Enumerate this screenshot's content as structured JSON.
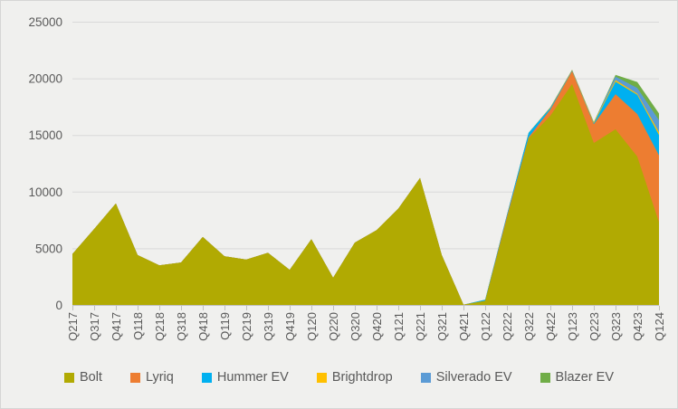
{
  "chart_data": {
    "type": "area",
    "stacked": true,
    "title": "",
    "xlabel": "",
    "ylabel": "",
    "ylim": [
      0,
      25000
    ],
    "ytick_step": 5000,
    "yticks": [
      0,
      5000,
      10000,
      15000,
      20000,
      25000
    ],
    "grid": true,
    "legend_position": "bottom",
    "categories": [
      "Q217",
      "Q317",
      "Q417",
      "Q118",
      "Q218",
      "Q318",
      "Q418",
      "Q119",
      "Q219",
      "Q319",
      "Q419",
      "Q120",
      "Q220",
      "Q320",
      "Q420",
      "Q121",
      "Q221",
      "Q321",
      "Q421",
      "Q122",
      "Q222",
      "Q322",
      "Q422",
      "Q123",
      "Q223",
      "Q323",
      "Q423",
      "Q124"
    ],
    "series": [
      {
        "name": "Bolt",
        "color": "#B1AA02",
        "values": [
          4500,
          6700,
          8950,
          4400,
          3500,
          3750,
          6000,
          4300,
          4000,
          4600,
          3100,
          5800,
          2400,
          5500,
          6600,
          8500,
          11200,
          4400,
          25,
          360,
          7600,
          14700,
          16700,
          19500,
          14300,
          15500,
          13100,
          7300
        ]
      },
      {
        "name": "Lyriq",
        "color": "#ED7D31",
        "values": [
          0,
          0,
          0,
          0,
          0,
          0,
          0,
          0,
          0,
          0,
          0,
          0,
          0,
          0,
          0,
          0,
          0,
          0,
          0,
          0,
          190,
          100,
          550,
          1150,
          1650,
          3100,
          3750,
          5900
        ]
      },
      {
        "name": "Hummer EV",
        "color": "#00B0F0",
        "values": [
          0,
          0,
          0,
          0,
          0,
          0,
          0,
          0,
          0,
          0,
          0,
          0,
          0,
          0,
          0,
          0,
          0,
          0,
          1,
          100,
          150,
          400,
          150,
          50,
          80,
          1100,
          1700,
          1800
        ]
      },
      {
        "name": "Brightdrop",
        "color": "#FFC000",
        "values": [
          0,
          0,
          0,
          0,
          0,
          0,
          0,
          0,
          0,
          0,
          0,
          0,
          0,
          0,
          0,
          0,
          0,
          0,
          0,
          0,
          0,
          0,
          50,
          60,
          110,
          150,
          100,
          250
        ]
      },
      {
        "name": "Silverado EV",
        "color": "#5B9BD5",
        "values": [
          0,
          0,
          0,
          0,
          0,
          0,
          0,
          0,
          0,
          0,
          0,
          0,
          0,
          0,
          0,
          0,
          0,
          0,
          0,
          0,
          0,
          0,
          0,
          0,
          0,
          300,
          500,
          1050
        ]
      },
      {
        "name": "Blazer EV",
        "color": "#70AD47",
        "values": [
          0,
          0,
          0,
          0,
          0,
          0,
          0,
          0,
          0,
          0,
          0,
          0,
          0,
          0,
          0,
          0,
          0,
          0,
          0,
          0,
          0,
          0,
          0,
          0,
          0,
          150,
          530,
          600
        ]
      }
    ]
  },
  "style": {
    "background": "#F0F0EE",
    "border": "#D5D5D5",
    "gridline": "#D9D9D9",
    "axis_line": "#BFBFBF",
    "tick": "#BFBFBF",
    "label_color": "#595959"
  }
}
